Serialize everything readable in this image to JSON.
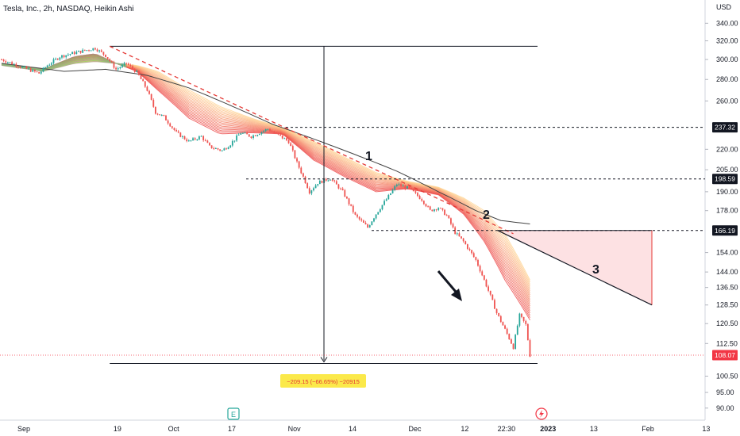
{
  "header": {
    "title": "Tesla, Inc., 2h, NASDAQ, Heikin Ashi"
  },
  "chart_data": {
    "type": "candlestick",
    "price_axis": {
      "unit": "USD",
      "ticks": [
        340,
        320,
        300,
        280,
        260,
        220,
        205,
        190,
        178,
        154,
        144,
        136.5,
        128.5,
        120.5,
        112.5,
        100.5,
        95,
        90
      ],
      "scale": "log",
      "range": [
        88,
        345
      ]
    },
    "time_axis": {
      "labels": [
        "Sep",
        "19",
        "Oct",
        "17",
        "Nov",
        "14",
        "Dec",
        "12",
        "22:30",
        "2023",
        "13",
        "Feb",
        "13"
      ],
      "label_positions_index": [
        0,
        45,
        72,
        100,
        130,
        158,
        188,
        212,
        232,
        252,
        274,
        300,
        328
      ]
    },
    "price_labels": [
      {
        "value": "237.32",
        "price": 237.32,
        "style": "dark"
      },
      {
        "value": "198.59",
        "price": 198.59,
        "style": "dark"
      },
      {
        "value": "166.19",
        "price": 166.19,
        "style": "dark"
      },
      {
        "value": "108.07",
        "price": 108.07,
        "style": "red"
      }
    ],
    "annotations": [
      {
        "text": "1"
      },
      {
        "text": "2"
      },
      {
        "text": "3"
      }
    ],
    "measure_label": "−209.15 (−66.65%) −20915",
    "series_path": [
      [
        0,
        300
      ],
      [
        10,
        292
      ],
      [
        18,
        286
      ],
      [
        22,
        294
      ],
      [
        28,
        303
      ],
      [
        35,
        307
      ],
      [
        45,
        312
      ],
      [
        50,
        304
      ],
      [
        55,
        290
      ],
      [
        60,
        296
      ],
      [
        65,
        287
      ],
      [
        70,
        270
      ],
      [
        74,
        250
      ],
      [
        78,
        246
      ],
      [
        84,
        233
      ],
      [
        90,
        226
      ],
      [
        96,
        230
      ],
      [
        100,
        222
      ],
      [
        106,
        219
      ],
      [
        110,
        224
      ],
      [
        115,
        233
      ],
      [
        120,
        230
      ],
      [
        128,
        236
      ],
      [
        132,
        232
      ],
      [
        138,
        226
      ],
      [
        142,
        210
      ],
      [
        148,
        190
      ],
      [
        152,
        196
      ],
      [
        158,
        199
      ],
      [
        164,
        190
      ],
      [
        170,
        175
      ],
      [
        176,
        168
      ],
      [
        180,
        176
      ],
      [
        186,
        187
      ],
      [
        190,
        195
      ],
      [
        196,
        192
      ],
      [
        202,
        185
      ],
      [
        206,
        178
      ],
      [
        210,
        180
      ],
      [
        214,
        175
      ],
      [
        218,
        165
      ],
      [
        222,
        160
      ],
      [
        228,
        150
      ],
      [
        234,
        135
      ],
      [
        238,
        125
      ],
      [
        242,
        118
      ],
      [
        246,
        111
      ],
      [
        249,
        124
      ],
      [
        252,
        120
      ],
      [
        254,
        108
      ]
    ],
    "ribbon_curves": [
      {
        "name": "fast",
        "points": [
          [
            0,
            296
          ],
          [
            20,
            290
          ],
          [
            35,
            303
          ],
          [
            45,
            306
          ],
          [
            55,
            296
          ],
          [
            65,
            288
          ],
          [
            75,
            270
          ],
          [
            90,
            245
          ],
          [
            105,
            232
          ],
          [
            120,
            233
          ],
          [
            135,
            232
          ],
          [
            150,
            212
          ],
          [
            165,
            200
          ],
          [
            180,
            190
          ],
          [
            195,
            192
          ],
          [
            210,
            188
          ],
          [
            222,
            176
          ],
          [
            232,
            160
          ],
          [
            242,
            140
          ],
          [
            254,
            122
          ]
        ]
      },
      {
        "name": "slow",
        "points": [
          [
            0,
            294
          ],
          [
            20,
            288
          ],
          [
            35,
            296
          ],
          [
            45,
            298
          ],
          [
            55,
            296
          ],
          [
            65,
            294
          ],
          [
            75,
            288
          ],
          [
            90,
            270
          ],
          [
            105,
            255
          ],
          [
            120,
            245
          ],
          [
            135,
            237
          ],
          [
            150,
            226
          ],
          [
            165,
            214
          ],
          [
            180,
            203
          ],
          [
            195,
            197
          ],
          [
            210,
            193
          ],
          [
            222,
            186
          ],
          [
            232,
            178
          ],
          [
            242,
            164
          ],
          [
            254,
            140
          ]
        ]
      }
    ],
    "moving_average": [
      [
        0,
        296
      ],
      [
        30,
        288
      ],
      [
        50,
        290
      ],
      [
        70,
        284
      ],
      [
        90,
        272
      ],
      [
        110,
        256
      ],
      [
        130,
        240
      ],
      [
        150,
        228
      ],
      [
        170,
        216
      ],
      [
        190,
        204
      ],
      [
        210,
        190
      ],
      [
        228,
        178
      ],
      [
        240,
        172
      ],
      [
        254,
        170
      ]
    ],
    "trendline": {
      "from": [
        52,
        314
      ],
      "to": [
        300,
        128.5
      ]
    },
    "value_range": [
      88,
      345
    ]
  }
}
